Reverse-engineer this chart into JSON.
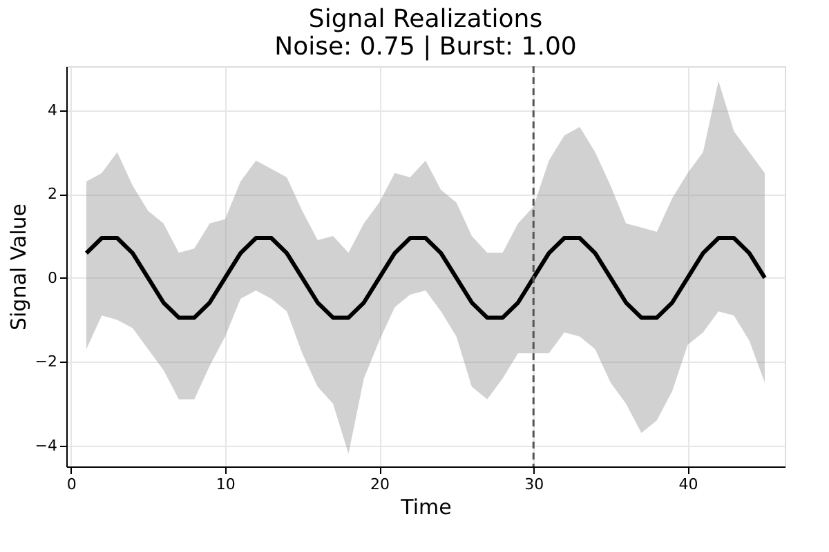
{
  "chart_data": {
    "type": "line",
    "title": "Signal Realizations",
    "subtitle": "Noise: 0.75 | Burst: 1.00",
    "xlabel": "Time",
    "ylabel": "Signal Value",
    "x": [
      1,
      2,
      3,
      4,
      5,
      6,
      7,
      8,
      9,
      10,
      11,
      12,
      13,
      14,
      15,
      16,
      17,
      18,
      19,
      20,
      21,
      22,
      23,
      24,
      25,
      26,
      27,
      28,
      29,
      30,
      31,
      32,
      33,
      34,
      35,
      36,
      37,
      38,
      39,
      40,
      41,
      42,
      43,
      44,
      45
    ],
    "series": [
      {
        "color": "#000000",
        "values": [
          0.59,
          0.95,
          0.95,
          0.59,
          0,
          -0.59,
          -0.95,
          -0.95,
          -0.59,
          0,
          0.59,
          0.95,
          0.95,
          0.59,
          0,
          -0.59,
          -0.95,
          -0.95,
          -0.59,
          0,
          0.59,
          0.95,
          0.95,
          0.59,
          0,
          -0.59,
          -0.95,
          -0.95,
          -0.59,
          0,
          0.59,
          0.95,
          0.95,
          0.59,
          0,
          -0.59,
          -0.95,
          -0.95,
          -0.59,
          0,
          0.59,
          0.95,
          0.95,
          0.59,
          0
        ],
        "upper": [
          2.3,
          2.5,
          3.0,
          2.2,
          1.6,
          1.3,
          0.6,
          0.7,
          1.3,
          1.4,
          2.3,
          2.8,
          2.6,
          2.4,
          1.6,
          0.9,
          1.0,
          0.6,
          1.3,
          1.8,
          2.5,
          2.4,
          2.8,
          2.1,
          1.8,
          1.0,
          0.6,
          0.6,
          1.3,
          1.7,
          2.8,
          3.4,
          3.6,
          3.0,
          2.2,
          1.3,
          1.2,
          1.1,
          1.9,
          2.5,
          3.0,
          4.7,
          3.5,
          3.0,
          2.5
        ],
        "lower": [
          -1.7,
          -0.9,
          -1.0,
          -1.2,
          -1.7,
          -2.2,
          -2.9,
          -2.9,
          -2.1,
          -1.4,
          -0.5,
          -0.3,
          -0.5,
          -0.8,
          -1.8,
          -2.6,
          -3.0,
          -4.2,
          -2.4,
          -1.5,
          -0.7,
          -0.4,
          -0.3,
          -0.8,
          -1.4,
          -2.6,
          -2.9,
          -2.4,
          -1.8,
          -1.8,
          -1.8,
          -1.3,
          -1.4,
          -1.7,
          -2.5,
          -3.0,
          -3.7,
          -3.4,
          -2.7,
          -1.6,
          -1.3,
          -0.8,
          -0.9,
          -1.5,
          -2.5
        ]
      }
    ],
    "xlim": [
      -0.3,
      46.3
    ],
    "ylim": [
      -4.5,
      5.05
    ],
    "xticks": [
      0,
      10,
      20,
      30,
      40
    ],
    "yticks": [
      -4,
      -2,
      0,
      2,
      4
    ],
    "ref_lines": [
      {
        "axis": "x",
        "value": 30,
        "color": "#555555",
        "line_style": "dashed"
      }
    ],
    "grid": true,
    "marker": "none",
    "line_style": "solid"
  }
}
